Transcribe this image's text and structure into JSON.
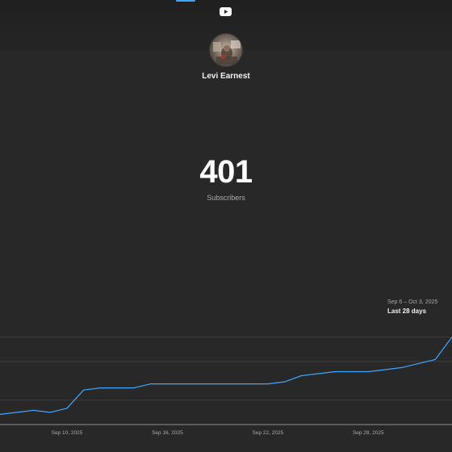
{
  "channel": {
    "name": "Levi Earnest",
    "subscribers": "401",
    "subscribers_label": "Subscribers"
  },
  "range": {
    "dates": "Sep 6 – Oct 3, 2025",
    "label": "Last 28 days"
  },
  "icons": {
    "platform": "youtube-icon",
    "avatar": "channel-avatar"
  },
  "colors": {
    "background": "#282828",
    "line": "#3ea6ff",
    "accent": "#3ea6ff",
    "youtube": "#ffffff"
  },
  "chart_data": {
    "type": "line",
    "title": "",
    "xlabel": "",
    "ylabel": "",
    "grid": true,
    "x": [
      "Sep 6",
      "Sep 7",
      "Sep 8",
      "Sep 9",
      "Sep 10",
      "Sep 11",
      "Sep 12",
      "Sep 13",
      "Sep 14",
      "Sep 15",
      "Sep 16",
      "Sep 17",
      "Sep 18",
      "Sep 19",
      "Sep 20",
      "Sep 21",
      "Sep 22",
      "Sep 23",
      "Sep 24",
      "Sep 25",
      "Sep 26",
      "Sep 27",
      "Sep 28",
      "Sep 29",
      "Sep 30",
      "Oct 1",
      "Oct 2",
      "Oct 3"
    ],
    "xticks": [
      "Sep 10, 2025",
      "Sep 16, 2025",
      "Sep 22, 2025",
      "Sep 28, 2025"
    ],
    "xtick_indices": [
      4,
      10,
      16,
      22
    ],
    "series": [
      {
        "values": [
          363,
          364,
          365,
          364,
          366,
          375,
          376,
          376,
          376,
          378,
          378,
          378,
          378,
          378,
          378,
          378,
          378,
          379,
          382,
          383,
          384,
          384,
          384,
          385,
          386,
          388,
          390,
          401
        ]
      }
    ],
    "ylim": [
      358,
      408
    ],
    "gridlines": [
      370,
      389,
      401
    ]
  }
}
